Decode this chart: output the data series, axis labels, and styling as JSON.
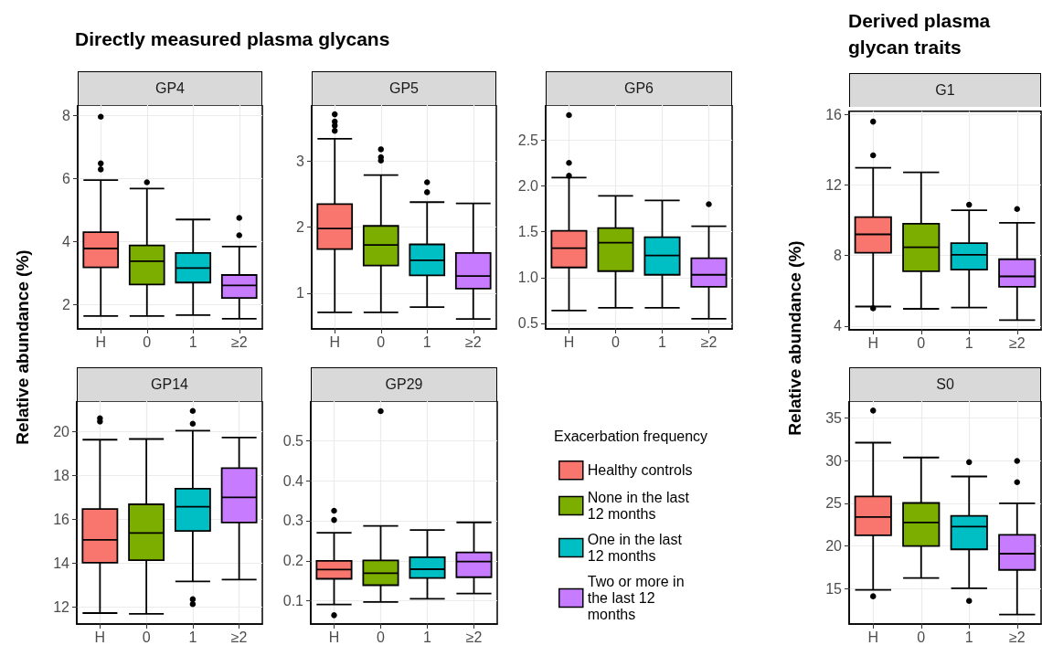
{
  "chart_data": [
    {
      "type": "box",
      "title": "GP4",
      "annotations": [
        "Directly measured plasma glycans"
      ],
      "ylabel": "Relative abundance (%)",
      "categories": [
        "H",
        "0",
        "1",
        "≥2"
      ],
      "ylim": [
        1.22,
        8.32
      ],
      "yticks": [
        2,
        4,
        6,
        8
      ],
      "grid": true,
      "series": [
        {
          "color": "#f8766d",
          "boxes": [
            {
              "low": 1.63,
              "q1": 3.17,
              "median": 3.77,
              "q3": 4.29,
              "high": 5.94,
              "outliers": [
                7.95,
                6.47,
                6.28
              ]
            },
            null,
            null,
            null
          ]
        },
        {
          "color": "#7cae00",
          "boxes": [
            null,
            {
              "low": 1.63,
              "q1": 2.63,
              "median": 3.37,
              "q3": 3.87,
              "high": 5.67,
              "outliers": [
                5.87
              ]
            },
            null,
            null
          ]
        },
        {
          "color": "#00bfc4",
          "boxes": [
            null,
            null,
            {
              "low": 1.66,
              "q1": 2.69,
              "median": 3.15,
              "q3": 3.63,
              "high": 4.69
            },
            null
          ]
        },
        {
          "color": "#c77cff",
          "boxes": [
            null,
            null,
            null,
            {
              "low": 1.54,
              "q1": 2.2,
              "median": 2.6,
              "q3": 2.93,
              "high": 3.83,
              "outliers": [
                4.74,
                4.19
              ]
            }
          ]
        }
      ]
    },
    {
      "type": "box",
      "title": "GP5",
      "categories": [
        "H",
        "0",
        "1",
        "≥2"
      ],
      "ylim": [
        0.46,
        3.85
      ],
      "yticks": [
        1,
        2,
        3
      ],
      "grid": true,
      "series": [
        {
          "color": "#f8766d",
          "boxes": [
            {
              "low": 0.71,
              "q1": 1.67,
              "median": 1.98,
              "q3": 2.35,
              "high": 3.34,
              "outliers": [
                3.71,
                3.6,
                3.54,
                3.46
              ]
            },
            null,
            null,
            null
          ]
        },
        {
          "color": "#7cae00",
          "boxes": [
            null,
            {
              "low": 0.71,
              "q1": 1.42,
              "median": 1.73,
              "q3": 2.02,
              "high": 2.79,
              "outliers": [
                3.18,
                3.06,
                3.01
              ]
            },
            null,
            null
          ]
        },
        {
          "color": "#00bfc4",
          "boxes": [
            null,
            null,
            {
              "low": 0.79,
              "q1": 1.27,
              "median": 1.5,
              "q3": 1.74,
              "high": 2.38,
              "outliers": [
                2.68,
                2.53
              ]
            },
            null
          ]
        },
        {
          "color": "#c77cff",
          "boxes": [
            null,
            null,
            null,
            {
              "low": 0.61,
              "q1": 1.07,
              "median": 1.26,
              "q3": 1.61,
              "high": 2.36
            }
          ]
        }
      ]
    },
    {
      "type": "box",
      "title": "GP6",
      "categories": [
        "H",
        "0",
        "1",
        "≥2"
      ],
      "ylim": [
        0.44,
        2.88
      ],
      "yticks": [
        0.5,
        {
          "value": 1,
          "label": "1.0"
        },
        1.5,
        {
          "value": 2,
          "label": "2.0"
        },
        2.5
      ],
      "grid": true,
      "series": [
        {
          "color": "#f8766d",
          "boxes": [
            {
              "low": 0.64,
              "q1": 1.11,
              "median": 1.32,
              "q3": 1.51,
              "high": 2.09,
              "outliers": [
                2.77,
                2.25,
                2.11
              ]
            },
            null,
            null,
            null
          ]
        },
        {
          "color": "#7cae00",
          "boxes": [
            null,
            {
              "low": 0.67,
              "q1": 1.07,
              "median": 1.38,
              "q3": 1.54,
              "high": 1.89
            },
            null,
            null
          ]
        },
        {
          "color": "#00bfc4",
          "boxes": [
            null,
            null,
            {
              "low": 0.67,
              "q1": 1.03,
              "median": 1.24,
              "q3": 1.44,
              "high": 1.84
            },
            null
          ]
        },
        {
          "color": "#c77cff",
          "boxes": [
            null,
            null,
            null,
            {
              "low": 0.55,
              "q1": 0.9,
              "median": 1.03,
              "q3": 1.21,
              "high": 1.56,
              "outliers": [
                1.8
              ]
            }
          ]
        }
      ]
    },
    {
      "type": "box",
      "title": "GP14",
      "categories": [
        "H",
        "0",
        "1",
        "≥2"
      ],
      "ylim": [
        11.22,
        21.39
      ],
      "yticks": [
        12,
        14,
        16,
        18,
        20
      ],
      "grid": true,
      "series": [
        {
          "color": "#f8766d",
          "boxes": [
            {
              "low": 11.72,
              "q1": 14.02,
              "median": 15.06,
              "q3": 16.47,
              "high": 19.63,
              "outliers": [
                20.61,
                20.46
              ]
            },
            null,
            null,
            null
          ]
        },
        {
          "color": "#7cae00",
          "boxes": [
            null,
            {
              "low": 11.68,
              "q1": 14.13,
              "median": 15.37,
              "q3": 16.68,
              "high": 19.66
            },
            null,
            null
          ]
        },
        {
          "color": "#00bfc4",
          "boxes": [
            null,
            null,
            {
              "low": 13.16,
              "q1": 15.47,
              "median": 16.57,
              "q3": 17.39,
              "high": 20.04,
              "outliers": [
                20.94,
                20.36,
                12.35,
                12.13
              ]
            },
            null
          ]
        },
        {
          "color": "#c77cff",
          "boxes": [
            null,
            null,
            null,
            {
              "low": 13.25,
              "q1": 15.85,
              "median": 17.0,
              "q3": 18.33,
              "high": 19.73
            }
          ]
        }
      ]
    },
    {
      "type": "box",
      "title": "GP29",
      "categories": [
        "H",
        "0",
        "1",
        "≥2"
      ],
      "ylim": [
        0.042,
        0.599
      ],
      "yticks": [
        0.1,
        0.2,
        0.3,
        0.4,
        0.5
      ],
      "grid": true,
      "legend": "right",
      "legend_title": "Exacerbation frequency",
      "series": [
        {
          "name": "Healthy controls",
          "color": "#f8766d",
          "boxes": [
            {
              "low": 0.091,
              "q1": 0.155,
              "median": 0.178,
              "q3": 0.2,
              "high": 0.27,
              "outliers": [
                0.325,
                0.302,
                0.064
              ]
            },
            null,
            null,
            null
          ]
        },
        {
          "name": "None in the last 12 months",
          "color": "#7cae00",
          "boxes": [
            null,
            {
              "low": 0.097,
              "q1": 0.139,
              "median": 0.169,
              "q3": 0.201,
              "high": 0.287,
              "outliers": [
                0.574
              ]
            },
            null,
            null
          ]
        },
        {
          "name": "One in the last 12 months",
          "color": "#00bfc4",
          "boxes": [
            null,
            null,
            {
              "low": 0.105,
              "q1": 0.157,
              "median": 0.179,
              "q3": 0.209,
              "high": 0.277
            },
            null
          ]
        },
        {
          "name": "Two or more in the last 12 months",
          "color": "#c77cff",
          "boxes": [
            null,
            null,
            null,
            {
              "low": 0.118,
              "q1": 0.159,
              "median": 0.198,
              "q3": 0.221,
              "high": 0.296
            }
          ]
        }
      ]
    },
    {
      "type": "box",
      "title": "G1",
      "annotations": [
        "Derived plasma glycan traits"
      ],
      "ylabel": "Relative abundance (%)",
      "categories": [
        "H",
        "0",
        "1",
        "≥2"
      ],
      "ylim": [
        3.78,
        16.17
      ],
      "yticks": [
        4,
        8,
        12,
        16
      ],
      "grid": true,
      "series": [
        {
          "color": "#f8766d",
          "boxes": [
            {
              "low": 5.1,
              "q1": 8.15,
              "median": 9.19,
              "q3": 10.17,
              "high": 12.96,
              "outliers": [
                15.58,
                13.67,
                5.0
              ]
            },
            null,
            null,
            null
          ]
        },
        {
          "color": "#7cae00",
          "boxes": [
            null,
            {
              "low": 4.97,
              "q1": 7.1,
              "median": 8.46,
              "q3": 9.79,
              "high": 12.71
            },
            null,
            null
          ]
        },
        {
          "color": "#00bfc4",
          "boxes": [
            null,
            null,
            {
              "low": 5.04,
              "q1": 7.19,
              "median": 8.03,
              "q3": 8.69,
              "high": 10.56,
              "outliers": [
                10.87
              ]
            },
            null
          ]
        },
        {
          "color": "#c77cff",
          "boxes": [
            null,
            null,
            null,
            {
              "low": 4.33,
              "q1": 6.22,
              "median": 6.81,
              "q3": 7.78,
              "high": 9.84,
              "outliers": [
                10.63
              ]
            }
          ]
        }
      ]
    },
    {
      "type": "box",
      "title": "S0",
      "categories": [
        "H",
        "0",
        "1",
        "≥2"
      ],
      "ylim": [
        10.86,
        36.97
      ],
      "yticks": [
        15,
        20,
        25,
        30,
        35
      ],
      "grid": true,
      "series": [
        {
          "color": "#f8766d",
          "boxes": [
            {
              "low": 14.86,
              "q1": 21.25,
              "median": 23.4,
              "q3": 25.8,
              "high": 32.1,
              "outliers": [
                35.86,
                14.11
              ]
            },
            null,
            null,
            null
          ]
        },
        {
          "color": "#7cae00",
          "boxes": [
            null,
            {
              "low": 16.24,
              "q1": 20.0,
              "median": 22.75,
              "q3": 25.04,
              "high": 30.36
            },
            null,
            null
          ]
        },
        {
          "color": "#00bfc4",
          "boxes": [
            null,
            null,
            {
              "low": 15.04,
              "q1": 19.61,
              "median": 22.27,
              "q3": 23.52,
              "high": 28.14,
              "outliers": [
                29.82,
                13.57
              ]
            },
            null
          ]
        },
        {
          "color": "#c77cff",
          "boxes": [
            null,
            null,
            null,
            {
              "low": 11.97,
              "q1": 17.2,
              "median": 19.1,
              "q3": 21.3,
              "high": 25.0,
              "outliers": [
                29.96,
                27.47
              ]
            }
          ]
        }
      ]
    }
  ]
}
